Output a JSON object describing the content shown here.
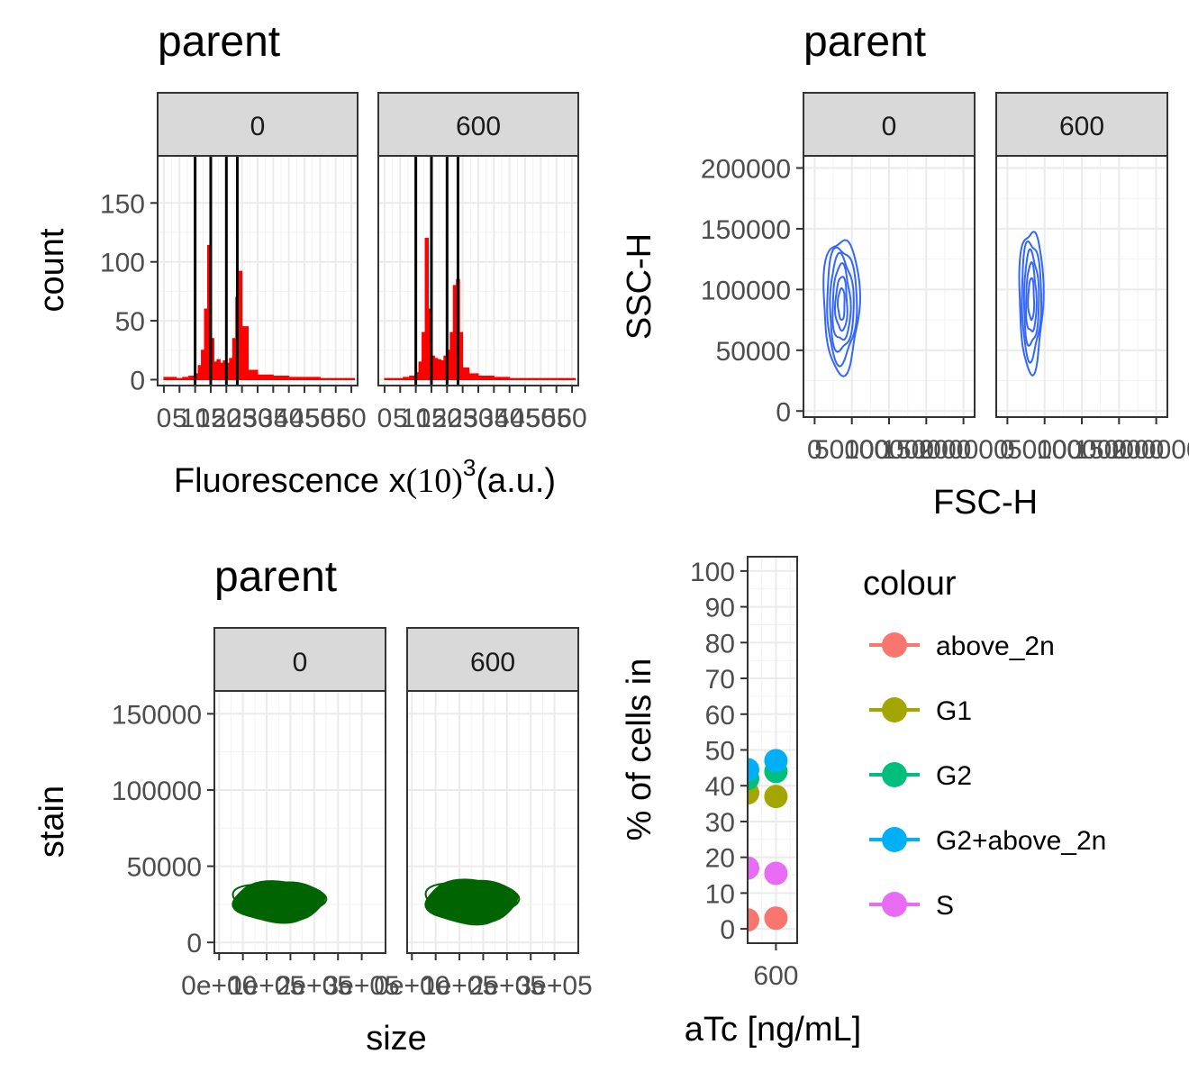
{
  "chart_data": [
    {
      "type": "histogram",
      "title": "parent",
      "xlabel": "Fluorescence x",
      "xlabel_math": "(10)",
      "xlabel_superscript": "3",
      "xlabel_suffix": "(a.u.)",
      "ylabel": "count",
      "facets": [
        "0",
        "600"
      ],
      "xlim": [
        -2,
        62
      ],
      "ylim": [
        -5,
        190
      ],
      "x_ticks": [
        0,
        5,
        10,
        15,
        20,
        25,
        30,
        35,
        40,
        45,
        50,
        55,
        60
      ],
      "x_tick_labels": [
        "0",
        "5",
        "10",
        "15",
        "20",
        "25",
        "30",
        "35",
        "40",
        "45",
        "50",
        "55",
        "60"
      ],
      "y_ticks": [
        0,
        50,
        100,
        150
      ],
      "y_tick_labels": [
        "0",
        "50",
        "100",
        "150"
      ],
      "gates": [
        [
          10,
          15,
          20,
          23.5
        ],
        [
          10,
          15,
          20,
          23.5
        ]
      ],
      "bar_color": "#ff0000",
      "series": [
        {
          "name": "0",
          "x": [
            0,
            2,
            4,
            6,
            8,
            10,
            11,
            12,
            13,
            14,
            15,
            16,
            17,
            18,
            19,
            20,
            21,
            22,
            23,
            24,
            25,
            27,
            30,
            35,
            40,
            45,
            50,
            55,
            60
          ],
          "values": [
            2,
            2,
            1,
            2,
            3,
            5,
            12,
            25,
            60,
            114,
            35,
            15,
            17,
            14,
            16,
            14,
            18,
            35,
            70,
            92,
            45,
            8,
            4,
            3,
            2,
            2,
            1,
            1,
            1
          ]
        },
        {
          "name": "600",
          "x": [
            0,
            2,
            4,
            6,
            8,
            10,
            11,
            12,
            13,
            14,
            15,
            16,
            17,
            18,
            19,
            20,
            21,
            22,
            23,
            24,
            25,
            27,
            30,
            35,
            40,
            45,
            50,
            55,
            60
          ],
          "values": [
            1,
            1,
            1,
            2,
            3,
            6,
            15,
            40,
            120,
            60,
            20,
            18,
            17,
            16,
            20,
            25,
            40,
            80,
            85,
            40,
            10,
            5,
            3,
            2,
            1,
            1,
            1,
            1,
            1
          ]
        }
      ]
    },
    {
      "type": "contour",
      "title": "parent",
      "xlabel": "FSC-H",
      "ylabel": "SSC-H",
      "facets": [
        "0",
        "600"
      ],
      "xlim": [
        -15000,
        215000
      ],
      "ylim": [
        -5000,
        210000
      ],
      "x_ticks": [
        0,
        50000,
        100000,
        150000,
        200000
      ],
      "x_tick_labels": [
        "0",
        "50000",
        "100000",
        "150000",
        "200000"
      ],
      "y_ticks": [
        0,
        50000,
        100000,
        150000,
        200000
      ],
      "y_tick_labels": [
        "0",
        "50000",
        "100000",
        "150000",
        "200000"
      ],
      "color": "#3366ff",
      "series": [
        {
          "name": "0",
          "center": [
            36000,
            88000
          ],
          "levels": [
            {
              "rx": 24000,
              "ry": 55000
            },
            {
              "rx": 20000,
              "ry": 47000
            },
            {
              "rx": 16000,
              "ry": 39000
            },
            {
              "rx": 12000,
              "ry": 31000
            },
            {
              "rx": 8000,
              "ry": 22000
            },
            {
              "rx": 4500,
              "ry": 13000
            }
          ]
        },
        {
          "name": "600",
          "center": [
            32000,
            92000
          ],
          "levels": [
            {
              "rx": 16000,
              "ry": 58000
            },
            {
              "rx": 13000,
              "ry": 48000
            },
            {
              "rx": 10000,
              "ry": 38000
            },
            {
              "rx": 7000,
              "ry": 28000
            },
            {
              "rx": 4000,
              "ry": 17000
            }
          ]
        }
      ]
    },
    {
      "type": "contour",
      "title": "parent",
      "xlabel": "size",
      "ylabel": "stain",
      "facets": [
        "0",
        "600"
      ],
      "xlim": [
        -10000,
        350000
      ],
      "ylim": [
        -7000,
        165000
      ],
      "x_ticks": [
        0,
        100000,
        200000,
        300000
      ],
      "x_tick_labels": [
        "0e+00",
        "1e+05",
        "2e+05",
        "3e+05"
      ],
      "x_minor_ticks": [
        50000,
        150000,
        250000
      ],
      "y_ticks": [
        0,
        50000,
        100000,
        150000
      ],
      "y_tick_labels": [
        "0",
        "50000",
        "100000",
        "150000"
      ],
      "color": "#006400",
      "series": [
        {
          "name": "0",
          "center": [
            125000,
            27000
          ],
          "levels": [
            {
              "rx": 95000,
              "ry": 13000
            },
            {
              "rx": 80000,
              "ry": 10000
            },
            {
              "rx": 60000,
              "ry": 7000
            }
          ]
        },
        {
          "name": "600",
          "center": [
            125000,
            27000
          ],
          "levels": [
            {
              "rx": 95000,
              "ry": 14000
            },
            {
              "rx": 80000,
              "ry": 10000
            },
            {
              "rx": 60000,
              "ry": 7000
            }
          ]
        }
      ]
    },
    {
      "type": "scatter",
      "title": "",
      "xlabel": "aTc [ng/mL]",
      "ylabel": "% of cells in",
      "xlim": [
        0,
        1050
      ],
      "ylim": [
        -4,
        104
      ],
      "x_ticks": [
        600
      ],
      "x_tick_labels": [
        "600"
      ],
      "y_ticks": [
        0,
        10,
        20,
        30,
        40,
        50,
        60,
        70,
        80,
        90,
        100
      ],
      "y_tick_labels": [
        "0",
        "10",
        "20",
        "30",
        "40",
        "50",
        "60",
        "70",
        "80",
        "90",
        "100"
      ],
      "legend_title": "colour",
      "legend_position": "right",
      "series": [
        {
          "name": "above_2n",
          "color": "#f8766d",
          "x": [
            0,
            600
          ],
          "values": [
            2.5,
            3
          ]
        },
        {
          "name": "G1",
          "color": "#a3a500",
          "x": [
            0,
            600
          ],
          "values": [
            38,
            37
          ]
        },
        {
          "name": "G2",
          "color": "#00bf7d",
          "x": [
            0,
            600
          ],
          "values": [
            42,
            44
          ]
        },
        {
          "name": "G2+above_2n",
          "color": "#00b0f6",
          "x": [
            0,
            600
          ],
          "values": [
            44.5,
            47
          ]
        },
        {
          "name": "S",
          "color": "#e76bf3",
          "x": [
            0,
            600
          ],
          "values": [
            17,
            15.5
          ]
        }
      ]
    }
  ]
}
